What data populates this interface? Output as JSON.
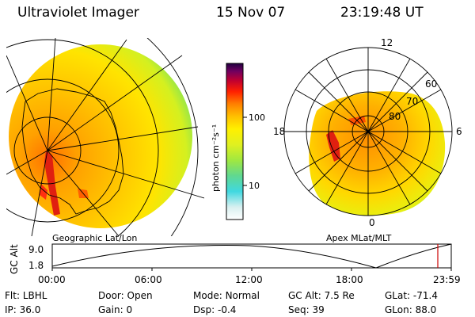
{
  "header": {
    "instrument": "Ultraviolet Imager",
    "date": "15 Nov 07",
    "time": "23:19:48 UT"
  },
  "geographic_panel": {
    "label": "Geographic Lat/Lon"
  },
  "apex_panel": {
    "label": "Apex MLat/MLT",
    "clock_labels": [
      "12",
      "18",
      "6",
      "0"
    ],
    "ring_labels": [
      "80",
      "70",
      "60"
    ]
  },
  "colorbar": {
    "unit_label": "photon cm⁻²s⁻¹",
    "ticks": [
      "100",
      "10"
    ],
    "colors": [
      "#ffffff",
      "#c8f0f0",
      "#40d8e0",
      "#80e040",
      "#c8f020",
      "#fff000",
      "#ffc000",
      "#ff8000",
      "#ff2000",
      "#c00030",
      "#800060",
      "#200040"
    ]
  },
  "altitude_strip": {
    "ylabel": "GC Alt",
    "ytick_top": "9.0",
    "ytick_bottom": "1.8",
    "xticks": [
      "00:00",
      "06:00",
      "12:00",
      "18:00",
      "23:59"
    ],
    "marker_color": "#cc0000"
  },
  "status": {
    "flt_label": "Flt:",
    "flt_value": "LBHL",
    "door_label": "Door:",
    "door_value": "Open",
    "mode_label": "Mode:",
    "mode_value": "Normal",
    "gcalt_label": "GC Alt:",
    "gcalt_value": "7.5 Re",
    "glat_label": "GLat:",
    "glat_value": "-71.4",
    "ip_label": "IP:",
    "ip_value": "36.0",
    "gain_label": "Gain:",
    "gain_value": "0",
    "dsp_label": "Dsp:",
    "dsp_value": "-0.4",
    "seq_label": "Seq:",
    "seq_value": "39",
    "glon_label": "GLon:",
    "glon_value": "88.0"
  }
}
